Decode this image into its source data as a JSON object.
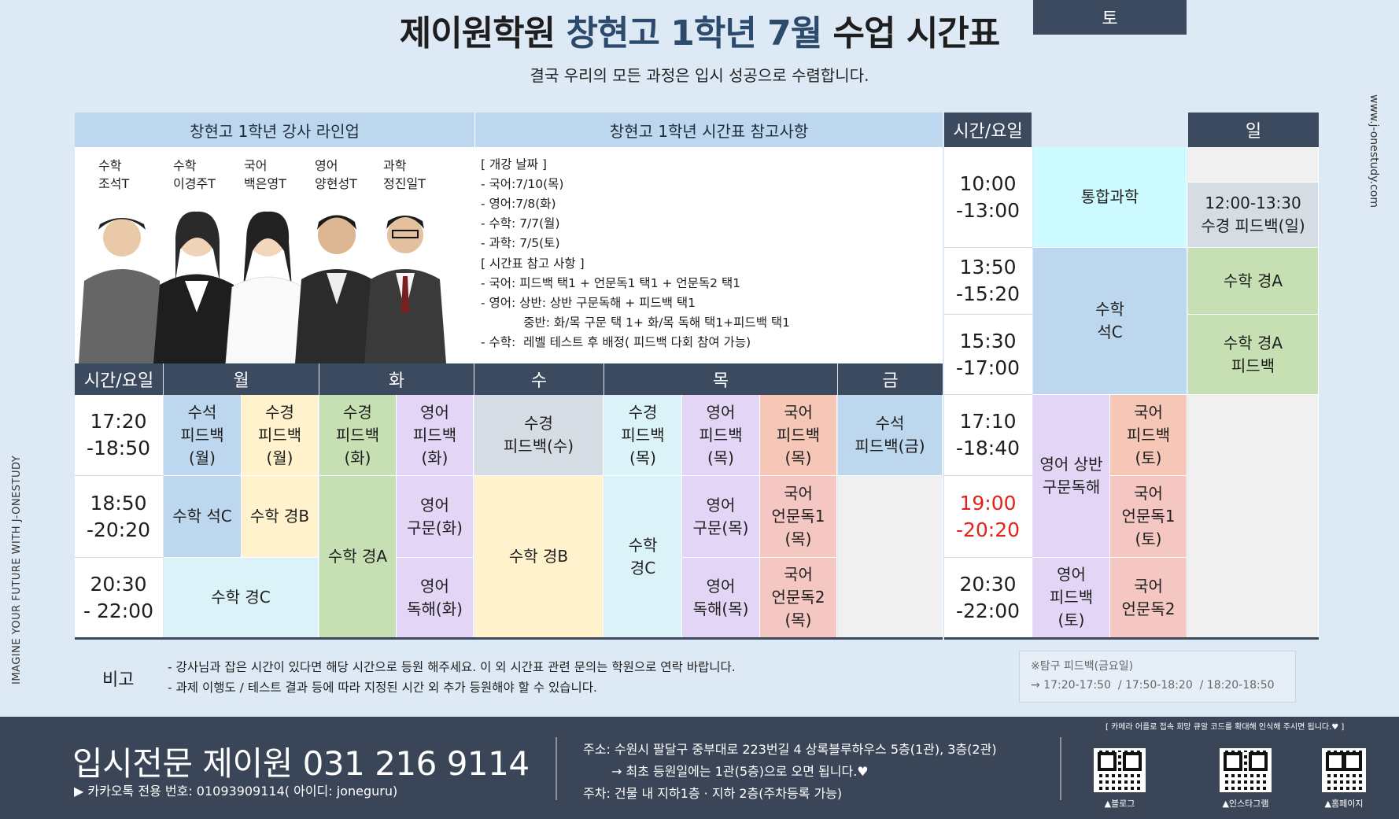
{
  "title": {
    "part1": "제이원학원",
    "part2": "창현고 1학년 7월",
    "part3": "수업 시간표"
  },
  "subtitle": "결국 우리의 모든 과정은 입시 성공으로 수렴합니다.",
  "side_left_text": "IMAGINE YOUR FUTURE WITH J-ONESTUDY",
  "side_right_text": "www.j-onestudy.com",
  "lineup": {
    "header": "창현고 1학년 강사 라인업",
    "teachers": [
      {
        "subject": "수학",
        "name": "조석T"
      },
      {
        "subject": "수학",
        "name": "이경주T"
      },
      {
        "subject": "국어",
        "name": "백은영T"
      },
      {
        "subject": "영어",
        "name": "양현성T"
      },
      {
        "subject": "과학",
        "name": "정진일T"
      }
    ]
  },
  "reference": {
    "header": "창현고 1학년 시간표 참고사항",
    "lines": [
      "[ 개강 날짜 ]",
      "- 국어:7/10(목)",
      "- 영어:7/8(화)",
      "- 수학: 7/7(월)",
      "- 과학: 7/5(토)",
      "[ 시간표 참고 사항 ]",
      "- 국어: 피드백 택1 + 언문독1 택1 + 언문독2 택1",
      "- 영어: 상반: 상반 구문독해 + 피드백 택1",
      "           중반: 화/목 구문 택 1+ 화/목 독해 택1+피드백 택1",
      "- 수학:  레벨 테스트 후 배정( 피드백 다회 참여 가능)"
    ]
  },
  "weekday": {
    "header_time": "시간/요일",
    "days": [
      "월",
      "화",
      "수",
      "목",
      "금"
    ],
    "times": [
      "17:20\n-18:50",
      "18:50\n-20:20",
      "20:30\n- 22:00"
    ],
    "cells": {
      "mon_a_1": "수석\n피드백\n(월)",
      "mon_b_1": "수경\n피드백\n(월)",
      "tue_a_1": "수경\n피드백\n(화)",
      "tue_b_1": "영어\n피드백\n(화)",
      "wed_1": "수경\n피드백(수)",
      "thu_a_1": "수경\n피드백\n(목)",
      "thu_b_1": "영어\n피드백\n(목)",
      "thu_c_1": "국어\n피드백\n(목)",
      "fri_1": "수석\n피드백(금)",
      "mon_a_2": "수학 석C",
      "mon_b_2": "수학 경B",
      "tue_a_23": "수학 경A",
      "tue_b_2": "영어\n구문(화)",
      "wed_23": "수학 경B",
      "thu_a_23": "수학\n경C",
      "thu_b_2": "영어\n구문(목)",
      "thu_c_2": "국어\n언문독1\n(목)",
      "mon_3": "수학 경C",
      "tue_b_3": "영어\n독해(화)",
      "thu_b_3": "영어\n독해(목)",
      "thu_c_3": "국어\n언문독2\n(목)"
    }
  },
  "weekend": {
    "header_time": "시간/요일",
    "days": [
      "토",
      "일"
    ],
    "times": [
      "10:00\n-13:00",
      "13:50\n-15:20",
      "15:30\n-17:00",
      "17:10\n-18:40",
      "19:00\n-20:20",
      "20:30\n-22:00"
    ],
    "cells": {
      "sat_science": "통합과학",
      "sat_math": "수학\n석C",
      "sun_feedback": "12:00-13:30\n수경 피드백(일)",
      "sun_math_a": "수학 경A",
      "sun_math_a_fb": "수학 경A\n피드백",
      "sat_eng_reading": "영어 상반\n구문독해",
      "sat_eng_fb": "영어\n피드백\n(토)",
      "sat_kor_fb": "국어\n피드백\n(토)",
      "sat_kor_1": "국어\n언문독1\n(토)",
      "sat_kor_2": "국어\n언문독2"
    }
  },
  "remarks": {
    "label": "비고",
    "lines": [
      "- 강사님과 잡은 시간이 있다면 해당 시간으로 등원 해주세요. 이 외 시간표 관련 문의는 학원으로 연락 바랍니다.",
      "- 과제 이행도 / 테스트 결과 등에 따라 지정된 시간 외 추가 등원해야 할 수 있습니다."
    ],
    "note": "※탐구 피드백(금요일)\n→ 17:20-17:50  / 17:50-18:20  / 18:20-18:50"
  },
  "footer": {
    "brand": "입시전문 제이원 031 216 9114",
    "kakao": "▶ 카카오톡 전용 번호: 01093909114( 아이디: joneguru)",
    "address": "주소: 수원시 팔달구 중부대로 223번길 4 상록블루하우스 5층(1관), 3층(2관)",
    "address2": "→ 최초 등원일에는 1관(5층)으로 오면 됩니다.♥",
    "parking": "주차: 건물 내 지하1층 · 지하 2층(주차등록 가능)",
    "qr_notice": "[ 카메라 어플로 접속 희망 큐알 코드를 확대해 인식해 주시면 됩니다.♥ ]",
    "qr_labels": [
      "▲블로그",
      "▲인스타그램",
      "▲홈페이지"
    ]
  },
  "colors": {
    "header_light": "#bdd7ee",
    "header_dark": "#3c4a5f",
    "footer_bg": "#3a4557",
    "highlight_red": "#e2231a"
  }
}
